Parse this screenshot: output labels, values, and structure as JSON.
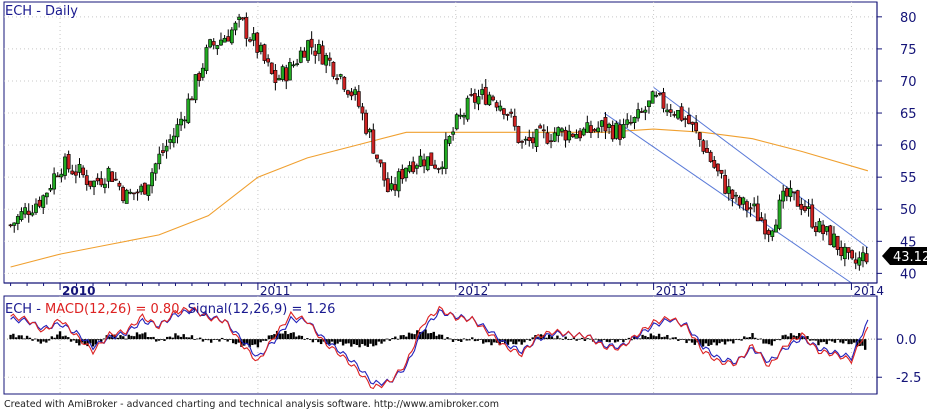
{
  "price_panel": {
    "title": "ECH - Daily",
    "y_ticks": [
      "40",
      "45",
      "50",
      "55",
      "60",
      "65",
      "70",
      "75",
      "80"
    ],
    "last_price_label": "43.12",
    "colors": {
      "up": "#22aa22",
      "down": "#cc2222",
      "outline": "#000000",
      "ma": "#f0a030",
      "channel": "#5a7ad8",
      "axis": "#141478",
      "grid": "#c8c8c8"
    }
  },
  "x_axis": {
    "year_labels": [
      "2010",
      "2011",
      "2012",
      "2013",
      "2014"
    ]
  },
  "macd_panel": {
    "title_prefix": "ECH - ",
    "macd_text": "MACD(12,26) = 0.80,",
    "signal_text": "Signal(12,26,9) = 1.26",
    "y_ticks": [
      "0.0",
      "-2.5"
    ],
    "colors": {
      "macd": "#dd2222",
      "signal": "#2222bb",
      "histogram": "#000000"
    }
  },
  "footer": {
    "text": "Created with AmiBroker - advanced charting and technical analysis software. http://www.amibroker.com"
  },
  "chart_data": [
    {
      "type": "candlestick",
      "title": "ECH - Daily",
      "ylim": [
        38.5,
        82
      ],
      "x_range": [
        "2009-10",
        "2014-02"
      ],
      "close_series": [
        [
          "2009-10",
          47.5
        ],
        [
          "2009-11",
          50
        ],
        [
          "2009-12",
          52
        ],
        [
          "2010-01",
          57
        ],
        [
          "2010-02",
          56
        ],
        [
          "2010-03",
          54
        ],
        [
          "2010-04",
          56
        ],
        [
          "2010-05",
          52
        ],
        [
          "2010-06",
          53
        ],
        [
          "2010-07",
          58
        ],
        [
          "2010-08",
          62
        ],
        [
          "2010-09",
          68
        ],
        [
          "2010-10",
          75
        ],
        [
          "2010-11",
          77
        ],
        [
          "2010-12",
          79
        ],
        [
          "2011-01",
          75
        ],
        [
          "2011-02",
          70
        ],
        [
          "2011-03",
          72
        ],
        [
          "2011-04",
          76
        ],
        [
          "2011-05",
          74
        ],
        [
          "2011-06",
          71
        ],
        [
          "2011-07",
          67
        ],
        [
          "2011-08",
          60
        ],
        [
          "2011-09",
          52
        ],
        [
          "2011-10",
          57
        ],
        [
          "2011-11",
          58
        ],
        [
          "2011-12",
          57
        ],
        [
          "2012-01",
          63
        ],
        [
          "2012-02",
          67
        ],
        [
          "2012-03",
          68
        ],
        [
          "2012-04",
          66
        ],
        [
          "2012-05",
          60
        ],
        [
          "2012-06",
          61
        ],
        [
          "2012-07",
          62
        ],
        [
          "2012-08",
          62
        ],
        [
          "2012-09",
          62
        ],
        [
          "2012-10",
          63
        ],
        [
          "2012-11",
          62
        ],
        [
          "2012-12",
          64
        ],
        [
          "2013-01",
          67
        ],
        [
          "2013-02",
          66
        ],
        [
          "2013-03",
          64
        ],
        [
          "2013-04",
          60
        ],
        [
          "2013-05",
          55
        ],
        [
          "2013-06",
          51
        ],
        [
          "2013-07",
          50
        ],
        [
          "2013-08",
          47
        ],
        [
          "2013-09",
          52
        ],
        [
          "2013-10",
          51
        ],
        [
          "2013-11",
          47
        ],
        [
          "2013-12",
          45
        ],
        [
          "2014-01",
          41
        ],
        [
          "2014-02",
          43.12
        ]
      ],
      "ma_series": [
        [
          "2009-10",
          41
        ],
        [
          "2010-01",
          43
        ],
        [
          "2010-04",
          44.5
        ],
        [
          "2010-07",
          46
        ],
        [
          "2010-10",
          49
        ],
        [
          "2011-01",
          55
        ],
        [
          "2011-04",
          58
        ],
        [
          "2011-07",
          60
        ],
        [
          "2011-10",
          62
        ],
        [
          "2012-01",
          62
        ],
        [
          "2012-04",
          62
        ],
        [
          "2012-07",
          62
        ],
        [
          "2012-10",
          62
        ],
        [
          "2013-01",
          62.5
        ],
        [
          "2013-04",
          62
        ],
        [
          "2013-07",
          61
        ],
        [
          "2013-10",
          59
        ],
        [
          "2014-02",
          56
        ]
      ],
      "channel_lines": [
        {
          "from": [
            "2012-10",
            65
          ],
          "to": [
            "2014-01",
            38.5
          ]
        },
        {
          "from": [
            "2013-01",
            69
          ],
          "to": [
            "2014-02",
            44
          ]
        }
      ],
      "last_value": 43.12
    },
    {
      "type": "line",
      "title": "ECH - MACD(12,26) = 0.80, Signal(12,26,9) = 1.26",
      "ylim": [
        -3.6,
        2.7
      ],
      "series": [
        {
          "name": "MACD(12,26)",
          "values": [
            1.5,
            1.3,
            0.5,
            1.3,
            0.2,
            -0.8,
            0.3,
            0.5,
            1.5,
            0.8,
            1.8,
            2.0,
            1.4,
            1.2,
            -0.3,
            -1.5,
            0.2,
            1.6,
            1.2,
            -0.2,
            -1.0,
            -2.0,
            -3.2,
            -2.8,
            -1.6,
            1.0,
            2.0,
            1.4,
            1.3,
            0.4,
            -0.5,
            -1.0,
            0.2,
            0.5,
            0.3,
            0.2,
            -0.5,
            -0.6,
            0.3,
            1.1,
            1.4,
            0.8,
            -0.8,
            -1.5,
            -1.6,
            -0.4,
            -1.8,
            -0.4,
            0.3,
            -0.8,
            -1.0,
            -1.4,
            0.8
          ]
        },
        {
          "name": "Signal(12,26,9)",
          "values": [
            1.3,
            1.2,
            0.7,
            1.0,
            0.4,
            -0.5,
            0.1,
            0.4,
            1.2,
            0.9,
            1.6,
            1.9,
            1.5,
            1.2,
            0.0,
            -1.2,
            -0.1,
            1.3,
            1.2,
            0.0,
            -0.8,
            -1.7,
            -2.9,
            -2.8,
            -1.8,
            0.6,
            1.8,
            1.5,
            1.3,
            0.6,
            -0.3,
            -0.8,
            0.0,
            0.4,
            0.3,
            0.2,
            -0.4,
            -0.5,
            0.2,
            0.9,
            1.3,
            0.9,
            -0.5,
            -1.3,
            -1.5,
            -0.6,
            -1.5,
            -0.6,
            0.1,
            -0.6,
            -0.9,
            -1.2,
            1.26
          ]
        }
      ],
      "final_values": {
        "macd": 0.8,
        "signal": 1.26
      }
    }
  ]
}
